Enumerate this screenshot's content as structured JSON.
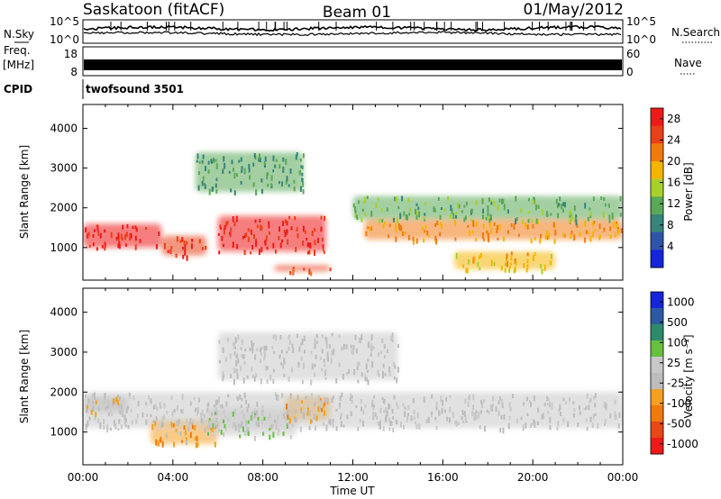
{
  "header": {
    "station": "Saskatoon (fitACF)",
    "beam": "Beam 01",
    "date": "01/May/2012"
  },
  "side_labels": {
    "n_sky": "N.Sky",
    "n_search": "N.Search",
    "freq": "Freq.",
    "freq_unit": "[MHz]",
    "nave": "Nave",
    "cpid": "CPID"
  },
  "cpid_text": "twofsound 3501",
  "noise_axis": {
    "left_top": "10^5",
    "left_bottom": "10^0",
    "right_top": "10^5",
    "right_bottom": "10^0"
  },
  "freq_axis": {
    "left_ticks": [
      "18",
      "8"
    ],
    "right_ticks": [
      "60",
      "0"
    ]
  },
  "colors": {
    "power_scale": [
      "#1426d8",
      "#2e55a8",
      "#37857a",
      "#5aa858",
      "#a8d02a",
      "#f4b400",
      "#f07a10",
      "#e84018",
      "#ee1a1a"
    ],
    "velocity_scale": [
      "#ee1a1a",
      "#e64818",
      "#f07a10",
      "#f4a020",
      "#bdbdbd",
      "#c8c8c8",
      "#68c040",
      "#2e8a6a",
      "#2c5aa0",
      "#1426d8"
    ]
  },
  "chart_data": [
    {
      "type": "heatmap",
      "title": "",
      "xlabel": "Time UT",
      "ylabel": "Slant Range [km]",
      "xlim_hours": [
        0,
        24
      ],
      "ylim_km": [
        180,
        4600
      ],
      "x_ticks": [
        "00:00",
        "04:00",
        "08:00",
        "12:00",
        "16:00",
        "20:00",
        "00:00"
      ],
      "y_ticks": [
        1000,
        2000,
        3000,
        4000
      ],
      "colorbar": {
        "label": "Power [dB]",
        "ticks": [
          "4",
          "8",
          "12",
          "16",
          "20",
          "24",
          "28"
        ],
        "range": [
          0,
          30
        ]
      },
      "bands": [
        {
          "t": [
            0,
            3.5
          ],
          "r": [
            1000,
            1600
          ],
          "value": 28
        },
        {
          "t": [
            3.5,
            5.5
          ],
          "r": [
            800,
            1300
          ],
          "value": 26
        },
        {
          "t": [
            6,
            10.8
          ],
          "r": [
            900,
            1800
          ],
          "value": 27
        },
        {
          "t": [
            12.5,
            24
          ],
          "r": [
            1200,
            1700
          ],
          "value": 20
        },
        {
          "t": [
            5,
            9.8
          ],
          "r": [
            2400,
            3400
          ],
          "value": 10
        },
        {
          "t": [
            12,
            24
          ],
          "r": [
            1700,
            2300
          ],
          "value": 12
        },
        {
          "t": [
            8.5,
            11
          ],
          "r": [
            400,
            560
          ],
          "value": 25
        },
        {
          "t": [
            16.5,
            21
          ],
          "r": [
            450,
            900
          ],
          "value": 18
        }
      ]
    },
    {
      "type": "heatmap",
      "title": "",
      "xlabel": "Time UT",
      "ylabel": "Slant Range [km]",
      "xlim_hours": [
        0,
        24
      ],
      "ylim_km": [
        180,
        4600
      ],
      "x_ticks": [
        "00:00",
        "04:00",
        "08:00",
        "12:00",
        "16:00",
        "20:00",
        "00:00"
      ],
      "y_ticks": [
        1000,
        2000,
        3000,
        4000
      ],
      "colorbar": {
        "label": "Velocity [m s⁻¹]",
        "ticks": [
          "1000",
          "500",
          "100",
          "25",
          "-25",
          "-100",
          "-500",
          "-1000"
        ],
        "range": [
          -1000,
          1000
        ]
      },
      "bands": [
        {
          "t": [
            3,
            6
          ],
          "r": [
            700,
            1300
          ],
          "value": -300
        },
        {
          "t": [
            5.5,
            9.5
          ],
          "r": [
            900,
            1600
          ],
          "value": 150
        },
        {
          "t": [
            9,
            11
          ],
          "r": [
            1300,
            1900
          ],
          "value": -300
        },
        {
          "t": [
            0,
            24
          ],
          "r": [
            1100,
            2000
          ],
          "value": 0
        },
        {
          "t": [
            6,
            14
          ],
          "r": [
            2300,
            3500
          ],
          "value": 0
        },
        {
          "t": [
            0,
            2
          ],
          "r": [
            1500,
            1900
          ],
          "value": -200
        }
      ]
    }
  ]
}
